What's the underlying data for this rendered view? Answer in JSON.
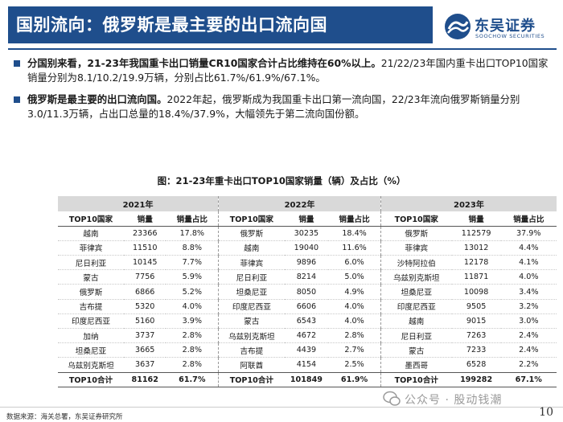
{
  "header": {
    "title": "国别流向：俄罗斯是最主要的出口流向国",
    "logo_cn": "东吴证券",
    "logo_en": "SOOCHOW SECURITIES"
  },
  "bullets": [
    {
      "bold": "分国别来看，21-23年我国重卡出口销量CR10国家合计占比维持在60%以上。",
      "text": "21/22/23年国内重卡出口TOP10国家销量分别为8.1/10.2/19.9万辆，分别占比61.7%/61.9%/67.1%。"
    },
    {
      "bold": "俄罗斯是最主要的出口流向国。",
      "text": "2022年起，俄罗斯成为我国重卡出口第一流向国，22/23年流向俄罗斯销量分别3.0/11.3万辆，占出口总量的18.4%/37.9%，大幅领先于第二流向国份额。"
    }
  ],
  "figure_caption": "图：21-23年重卡出口TOP10国家销量（辆）及占比（%）",
  "table": {
    "years": [
      "2021年",
      "2022年",
      "2023年"
    ],
    "col_headers": [
      "TOP10国家",
      "销量",
      "销量占比"
    ],
    "groups": [
      {
        "rows": [
          [
            "越南",
            "23366",
            "17.8%"
          ],
          [
            "菲律宾",
            "11510",
            "8.8%"
          ],
          [
            "尼日利亚",
            "10145",
            "7.7%"
          ],
          [
            "蒙古",
            "7756",
            "5.9%"
          ],
          [
            "俄罗斯",
            "6866",
            "5.2%"
          ],
          [
            "吉布提",
            "5320",
            "4.0%"
          ],
          [
            "印度尼西亚",
            "5160",
            "3.9%"
          ],
          [
            "加纳",
            "3737",
            "2.8%"
          ],
          [
            "坦桑尼亚",
            "3665",
            "2.8%"
          ],
          [
            "乌兹别克斯坦",
            "3637",
            "2.8%"
          ]
        ],
        "total": [
          "TOP10合计",
          "81162",
          "61.7%"
        ]
      },
      {
        "rows": [
          [
            "俄罗斯",
            "30235",
            "18.4%"
          ],
          [
            "越南",
            "19040",
            "11.6%"
          ],
          [
            "菲律宾",
            "9896",
            "6.0%"
          ],
          [
            "尼日利亚",
            "8214",
            "5.0%"
          ],
          [
            "坦桑尼亚",
            "8050",
            "4.9%"
          ],
          [
            "印度尼西亚",
            "6606",
            "4.0%"
          ],
          [
            "蒙古",
            "6543",
            "4.0%"
          ],
          [
            "乌兹别克斯坦",
            "4672",
            "2.8%"
          ],
          [
            "吉布提",
            "4439",
            "2.7%"
          ],
          [
            "阿联酋",
            "4154",
            "2.5%"
          ]
        ],
        "total": [
          "TOP10合计",
          "101849",
          "61.9%"
        ]
      },
      {
        "rows": [
          [
            "俄罗斯",
            "112579",
            "37.9%"
          ],
          [
            "菲律宾",
            "13012",
            "4.4%"
          ],
          [
            "沙特阿拉伯",
            "12178",
            "4.1%"
          ],
          [
            "乌兹别克斯坦",
            "11871",
            "4.0%"
          ],
          [
            "坦桑尼亚",
            "10098",
            "3.4%"
          ],
          [
            "印度尼西亚",
            "9505",
            "3.2%"
          ],
          [
            "越南",
            "9015",
            "3.0%"
          ],
          [
            "尼日利亚",
            "7263",
            "2.4%"
          ],
          [
            "蒙古",
            "7233",
            "2.4%"
          ],
          [
            "墨西哥",
            "6528",
            "2.2%"
          ]
        ],
        "total": [
          "TOP10合计",
          "199282",
          "67.1%"
        ]
      }
    ]
  },
  "footer": {
    "source": "数据来源：海关总署，东吴证券研究所",
    "page_number": "10",
    "watermark": "公众号 · 股动钱潮"
  }
}
